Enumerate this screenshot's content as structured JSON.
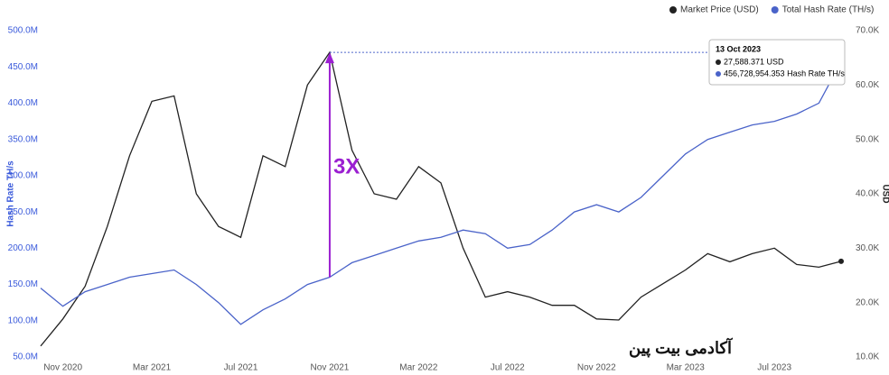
{
  "chart_data": {
    "type": "line",
    "legend": "top-right",
    "y_label": "Hash Rate TH/s",
    "y2_label": "USD",
    "annotation": "3X",
    "watermark": "آکادمی بیت پین",
    "tooltip": {
      "title": "13 Oct 2023",
      "price": "27,588.371 USD",
      "hashrate": "456,728,954.353 Hash Rate TH/s"
    },
    "categories": [
      null,
      "Nov 2020",
      null,
      null,
      null,
      "Mar 2021",
      null,
      null,
      null,
      "Jul 2021",
      null,
      null,
      null,
      "Nov 2021",
      null,
      null,
      null,
      "Mar 2022",
      null,
      null,
      null,
      "Jul 2022",
      null,
      null,
      null,
      "Nov 2022",
      null,
      null,
      null,
      "Mar 2023",
      null,
      null,
      null,
      "Jul 2023",
      null,
      null,
      null
    ],
    "series": [
      {
        "name": "Market Price (USD)",
        "color": "#222222",
        "axis": "y2",
        "values": [
          12,
          17,
          23,
          34,
          47,
          57,
          58,
          40,
          34,
          32,
          47,
          45,
          60,
          66,
          48,
          40,
          39,
          45,
          42,
          30,
          21,
          22,
          21,
          19.5,
          19.5,
          17,
          16.8,
          21,
          23.5,
          26,
          29,
          27.5,
          29,
          30,
          27,
          26.5,
          27.59
        ]
      },
      {
        "name": "Total Hash Rate (TH/s)",
        "color": "#4a63c9",
        "values": [
          145,
          120,
          140,
          150,
          160,
          165,
          170,
          150,
          125,
          95,
          115,
          130,
          150,
          160,
          180,
          190,
          200,
          210,
          215,
          225,
          220,
          200,
          205,
          225,
          250,
          260,
          250,
          270,
          300,
          330,
          350,
          360,
          370,
          375,
          385,
          400,
          457
        ]
      }
    ],
    "ylim": [
      50,
      500
    ],
    "yticks": [
      {
        "value": 50,
        "label": "50.0M"
      },
      {
        "value": 100,
        "label": "100.0M"
      },
      {
        "value": 150,
        "label": "150.0M"
      },
      {
        "value": 200,
        "label": "200.0M"
      },
      {
        "value": 250,
        "label": "250.0M"
      },
      {
        "value": 300,
        "label": "300.0M"
      },
      {
        "value": 350,
        "label": "350.0M"
      },
      {
        "value": 400,
        "label": "400.0M"
      },
      {
        "value": 450,
        "label": "450.0M"
      },
      {
        "value": 500,
        "label": "500.0M"
      }
    ],
    "y2lim": [
      10,
      70
    ],
    "y2ticks": [
      {
        "value": 10,
        "label": "10.0K"
      },
      {
        "value": 20,
        "label": "20.0K"
      },
      {
        "value": 30,
        "label": "30.0K"
      },
      {
        "value": 40,
        "label": "40.0K"
      },
      {
        "value": 50,
        "label": "50.0K"
      },
      {
        "value": 60,
        "label": "60.0K"
      },
      {
        "value": 70,
        "label": "70.0K"
      }
    ]
  }
}
